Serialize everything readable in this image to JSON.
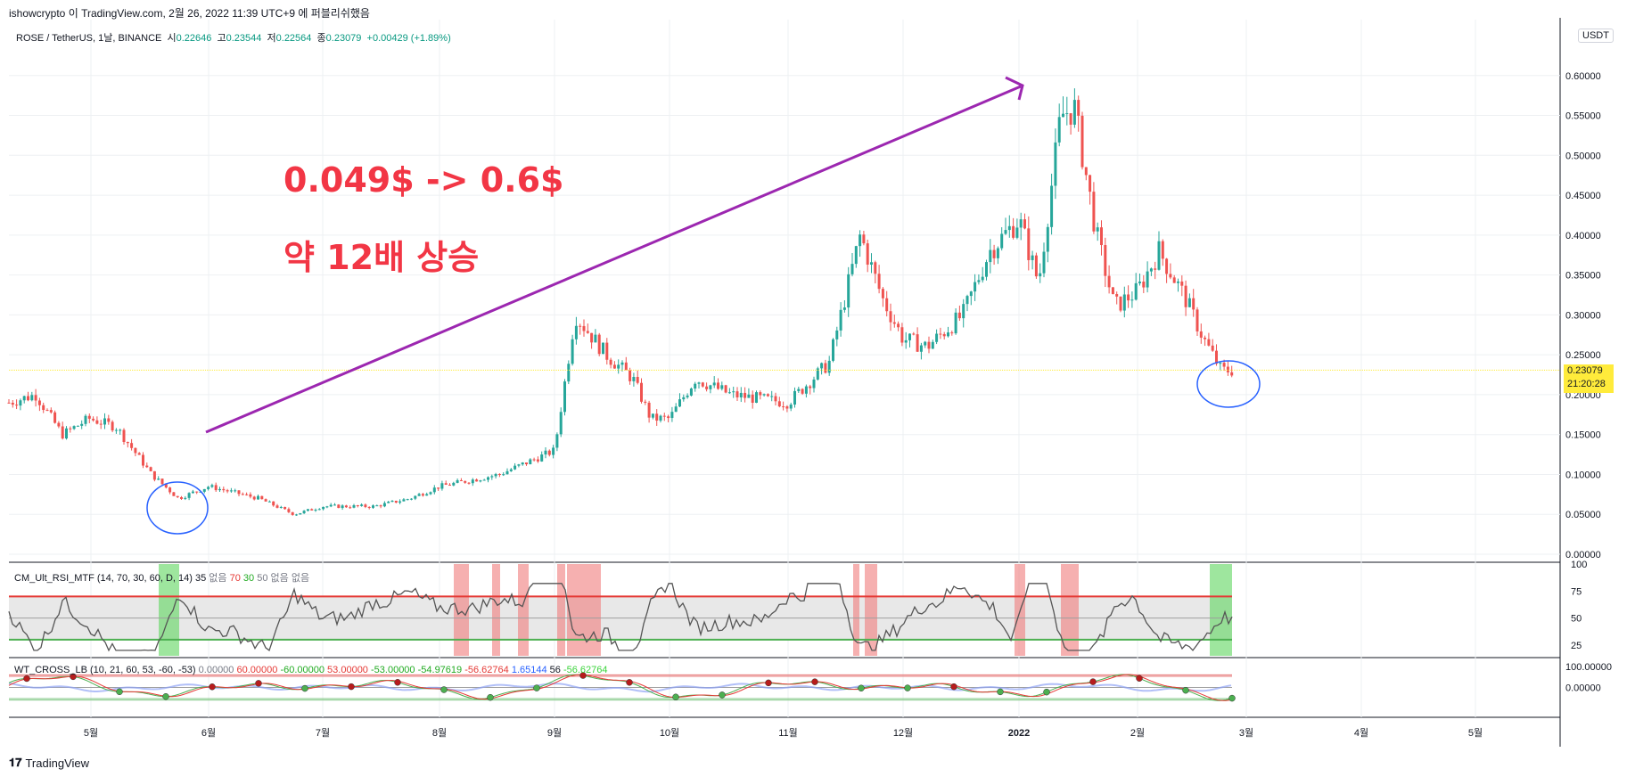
{
  "header": {
    "text": "ishowcrypto 이 TradingView.com, 2월 26, 2022 11:39 UTC+9 에 퍼블리쉬했음"
  },
  "footer": {
    "brand": "TradingView",
    "logo": "tv-logo-icon"
  },
  "legend": {
    "symbol": "ROSE / TetherUS, 1날, BINANCE",
    "o_label": "시",
    "o_val": "0.22646",
    "h_label": "고",
    "h_val": "0.23544",
    "l_label": "저",
    "l_val": "0.22564",
    "c_label": "종",
    "c_val": "0.23079",
    "chg": "+0.00429 (+1.89%)"
  },
  "rsi_legend": {
    "name": "CM_Ult_RSI_MTF (14, 70, 30, 60, D, 14)",
    "v1": "35",
    "v2": "없음",
    "v3": "70",
    "v4": "30",
    "v5": "50",
    "v6": "없음",
    "v7": "없음"
  },
  "wt_legend": {
    "name": "WT_CROSS_LB (10, 21, 60, 53, -60, -53)",
    "v1": "0.00000",
    "v2": "60.00000",
    "v3": "-60.00000",
    "v4": "53.00000",
    "v5": "-53.00000",
    "v6": "-54.97619",
    "v7": "-56.62764",
    "v8": "1.65144",
    "v9": "56",
    "v10": "-56.62764"
  },
  "annotations": {
    "line1": "0.049$ -> 0.6$",
    "line2": "약 12배 상승"
  },
  "price_box": {
    "price": "0.23079",
    "countdown": "21:20:28"
  },
  "currency_button": "USDT",
  "colors": {
    "up": "#26a69a",
    "down": "#ef5350",
    "arrow": "#9c27b0",
    "circle": "#2962ff",
    "annotation": "#f23645",
    "price_line": "#ffeb3b"
  },
  "chart_data": [
    {
      "type": "candlestick",
      "title": "ROSE / TetherUS, 1날, BINANCE",
      "x_ticks": [
        "5월",
        "6월",
        "7월",
        "8월",
        "9월",
        "10월",
        "11월",
        "12월",
        "2022",
        "2월",
        "3월",
        "4월",
        "5월"
      ],
      "y_ticks": [
        "0.00000",
        "0.05000",
        "0.10000",
        "0.15000",
        "0.20000",
        "0.25000",
        "0.30000",
        "0.35000",
        "0.40000",
        "0.45000",
        "0.50000",
        "0.55000",
        "0.60000"
      ],
      "ylim": [
        0,
        0.65
      ],
      "series_close_by_month_start": [
        {
          "x": "5월",
          "close": 0.17
        },
        {
          "x": "6월",
          "close": 0.085
        },
        {
          "x": "7월",
          "close": 0.06
        },
        {
          "x": "8월",
          "close": 0.085
        },
        {
          "x": "9월",
          "close": 0.13
        },
        {
          "x": "10월",
          "close": 0.17
        },
        {
          "x": "11월",
          "close": 0.19
        },
        {
          "x": "12월",
          "close": 0.27
        },
        {
          "x": "2022",
          "close": 0.42
        },
        {
          "x": "2월",
          "close": 0.33
        }
      ],
      "low_point": 0.049,
      "peak_point": 0.6,
      "last_close": 0.23079
    },
    {
      "type": "line",
      "title": "CM_Ult_RSI_MTF",
      "y_ticks": [
        "25",
        "50",
        "75",
        "100"
      ],
      "ylim": [
        15,
        100
      ],
      "bands": [
        30,
        50,
        70
      ]
    },
    {
      "type": "line",
      "title": "WT_CROSS_LB",
      "y_ticks": [
        "0.00000",
        "100.00000"
      ]
    }
  ]
}
